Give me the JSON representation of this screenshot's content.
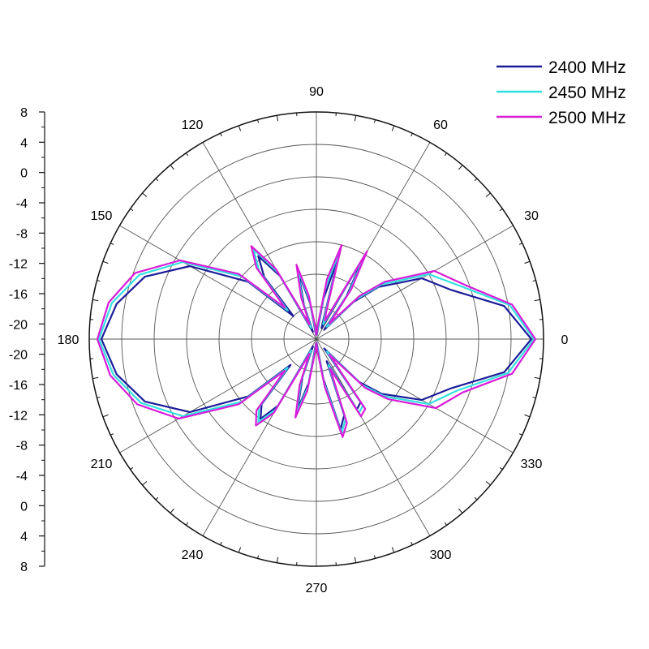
{
  "chart_data": {
    "type": "polar-line",
    "title": "",
    "angle_ticks": [
      "0",
      "30",
      "60",
      "90",
      "120",
      "150",
      "180",
      "210",
      "240",
      "270",
      "300",
      "330"
    ],
    "radial_axis": {
      "ticks": [
        "8",
        "4",
        "0",
        "-4",
        "-8",
        "-12",
        "-16",
        "-20",
        "-20",
        "-16",
        "-12",
        "-8",
        "-4",
        "0",
        "4",
        "8"
      ],
      "range": [
        -20,
        8
      ],
      "step": 4
    },
    "grid": true,
    "legend_position": "top-right",
    "theta": [
      0,
      10,
      20,
      30,
      40,
      45,
      50,
      55,
      60,
      65,
      70,
      75,
      80,
      85,
      90,
      95,
      100,
      105,
      110,
      115,
      120,
      125,
      130,
      135,
      140,
      150,
      160,
      170,
      180,
      190,
      200,
      210,
      220,
      225,
      230,
      235,
      240,
      245,
      250,
      255,
      260,
      265,
      270,
      275,
      280,
      285,
      290,
      295,
      300,
      305,
      310,
      315,
      320,
      330,
      340,
      350
    ],
    "series": [
      {
        "name": "2400 MHz",
        "color": "#1c1c99",
        "r": [
          6.5,
          3.5,
          -2.3,
          -5.0,
          -10.0,
          -13.5,
          -18.5,
          -13.5,
          -8.5,
          -18.5,
          -17.5,
          -9.5,
          -15.0,
          -19.5,
          -19.5,
          -19.5,
          -15.5,
          -11.5,
          -15.5,
          -19.0,
          -11.0,
          -7.5,
          -10.0,
          -16.0,
          -9.0,
          -2.0,
          2.5,
          5.0,
          6.5,
          5.0,
          2.5,
          -2.0,
          -9.0,
          -15.5,
          -9.5,
          -8.0,
          -10.5,
          -19.0,
          -15.0,
          -11.0,
          -14.5,
          -19.5,
          -19.5,
          -19.5,
          -15.0,
          -8.5,
          -10.0,
          -17.0,
          -10.0,
          -10.5,
          -18.5,
          -12.5,
          -9.5,
          -5.0,
          -2.3,
          3.5
        ]
      },
      {
        "name": "2450 MHz",
        "color": "#33e0e0",
        "r": [
          6.8,
          4.2,
          -1.0,
          -4.0,
          -9.5,
          -13.0,
          -18.0,
          -13.0,
          -8.0,
          -18.0,
          -17.0,
          -8.5,
          -13.5,
          -19.0,
          -19.5,
          -19.0,
          -15.0,
          -11.0,
          -15.0,
          -18.5,
          -10.5,
          -6.5,
          -9.0,
          -15.0,
          -8.0,
          -1.0,
          3.2,
          5.6,
          6.8,
          5.4,
          3.0,
          -1.0,
          -8.0,
          -15.0,
          -9.0,
          -7.5,
          -10.0,
          -18.5,
          -14.5,
          -10.5,
          -14.0,
          -19.0,
          -19.5,
          -19.0,
          -14.5,
          -8.0,
          -9.5,
          -16.5,
          -9.5,
          -10.0,
          -18.0,
          -12.0,
          -9.0,
          -4.0,
          -1.5,
          4.0
        ]
      },
      {
        "name": "2500 MHz",
        "color": "#d81bd8",
        "r": [
          7.0,
          4.5,
          -0.5,
          -3.2,
          -9.0,
          -12.5,
          -17.5,
          -12.5,
          -7.5,
          -17.5,
          -16.5,
          -8.0,
          -12.5,
          -18.5,
          -19.5,
          -18.5,
          -14.5,
          -10.5,
          -14.5,
          -18.0,
          -10.0,
          -6.0,
          -8.5,
          -14.5,
          -7.5,
          -0.6,
          3.8,
          6.0,
          7.0,
          5.8,
          3.5,
          -0.4,
          -7.5,
          -14.5,
          -8.5,
          -7.0,
          -9.5,
          -18.0,
          -14.0,
          -10.0,
          -13.5,
          -18.5,
          -19.5,
          -18.5,
          -14.0,
          -7.5,
          -9.0,
          -16.0,
          -9.0,
          -9.5,
          -17.5,
          -11.5,
          -8.5,
          -3.0,
          -0.8,
          4.5
        ]
      }
    ]
  }
}
